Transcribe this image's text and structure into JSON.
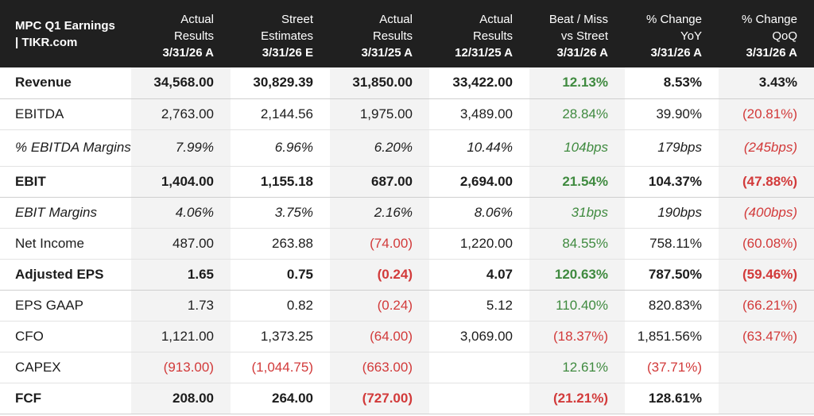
{
  "header": {
    "title_line1": "MPC Q1 Earnings",
    "title_line2": "| TIKR.com",
    "columns": [
      {
        "l1": "Actual",
        "l2": "Results",
        "l3": "3/31/26 A"
      },
      {
        "l1": "Street",
        "l2": "Estimates",
        "l3": "3/31/26 E"
      },
      {
        "l1": "Actual",
        "l2": "Results",
        "l3": "3/31/25 A"
      },
      {
        "l1": "Actual",
        "l2": "Results",
        "l3": "12/31/25 A"
      },
      {
        "l1": "Beat / Miss",
        "l2": "vs Street",
        "l3": "3/31/26 A"
      },
      {
        "l1": "% Change",
        "l2": "YoY",
        "l3": "3/31/26 A"
      },
      {
        "l1": "% Change",
        "l2": "QoQ",
        "l3": "3/31/26 A"
      }
    ]
  },
  "rows": [
    {
      "label": "Revenue",
      "cells": [
        "34,568.00",
        "30,829.39",
        "31,850.00",
        "33,422.00",
        "12.13%",
        "8.53%",
        "3.43%"
      ]
    },
    {
      "label": "EBITDA",
      "cells": [
        "2,763.00",
        "2,144.56",
        "1,975.00",
        "3,489.00",
        "28.84%",
        "39.90%",
        "(20.81%)"
      ]
    },
    {
      "label": "% EBITDA Margins",
      "cells": [
        "7.99%",
        "6.96%",
        "6.20%",
        "10.44%",
        "104bps",
        "179bps",
        "(245bps)"
      ]
    },
    {
      "label": "EBIT",
      "cells": [
        "1,404.00",
        "1,155.18",
        "687.00",
        "2,694.00",
        "21.54%",
        "104.37%",
        "(47.88%)"
      ]
    },
    {
      "label": "EBIT Margins",
      "cells": [
        "4.06%",
        "3.75%",
        "2.16%",
        "8.06%",
        "31bps",
        "190bps",
        "(400bps)"
      ]
    },
    {
      "label": "Net Income",
      "cells": [
        "487.00",
        "263.88",
        "(74.00)",
        "1,220.00",
        "84.55%",
        "758.11%",
        "(60.08%)"
      ]
    },
    {
      "label": "Adjusted EPS",
      "cells": [
        "1.65",
        "0.75",
        "(0.24)",
        "4.07",
        "120.63%",
        "787.50%",
        "(59.46%)"
      ]
    },
    {
      "label": "EPS GAAP",
      "cells": [
        "1.73",
        "0.82",
        "(0.24)",
        "5.12",
        "110.40%",
        "820.83%",
        "(66.21%)"
      ]
    },
    {
      "label": "CFO",
      "cells": [
        "1,121.00",
        "1,373.25",
        "(64.00)",
        "3,069.00",
        "(18.37%)",
        "1,851.56%",
        "(63.47%)"
      ]
    },
    {
      "label": "CAPEX",
      "cells": [
        "(913.00)",
        "(1,044.75)",
        "(663.00)",
        "",
        "12.61%",
        "(37.71%)",
        ""
      ]
    },
    {
      "label": "FCF",
      "cells": [
        "208.00",
        "264.00",
        "(727.00)",
        "",
        "(21.21%)",
        "128.61%",
        ""
      ]
    }
  ],
  "colors": {
    "header_bg": "#202020",
    "positive": "#3f8a3f",
    "negative": "#d23a3a",
    "shade": "#f3f3f3"
  }
}
